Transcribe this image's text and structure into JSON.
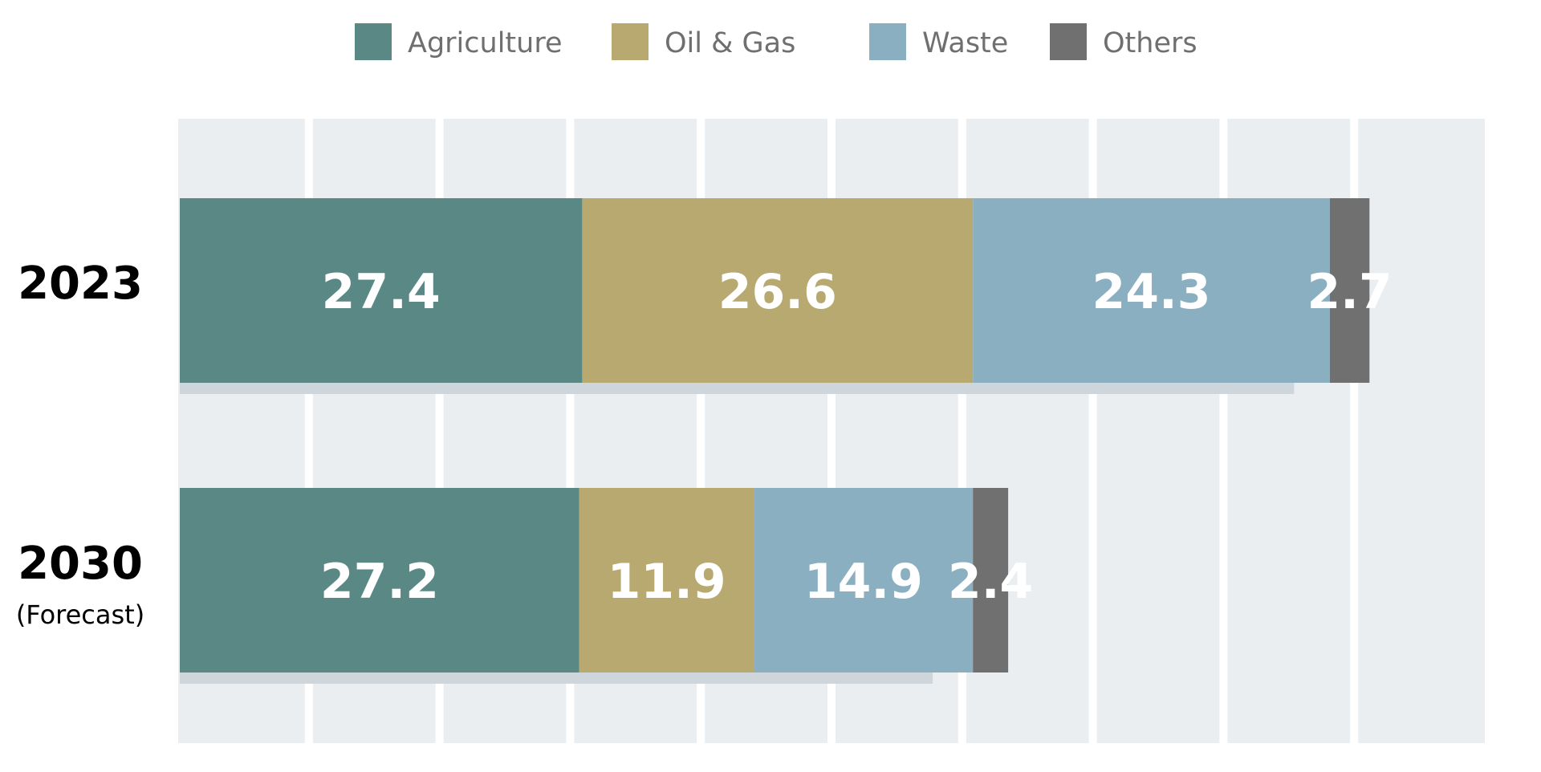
{
  "chart_data": {
    "type": "bar",
    "orientation": "horizontal",
    "stacked": true,
    "categories": [
      {
        "label": "2023",
        "sublabel": ""
      },
      {
        "label": "2030",
        "sublabel": "(Forecast)"
      }
    ],
    "series": [
      {
        "name": "Agriculture",
        "color": "#5a8985",
        "values": [
          27.4,
          27.2
        ]
      },
      {
        "name": "Oil &  Gas",
        "color": "#b8a970",
        "values": [
          26.6,
          11.9
        ]
      },
      {
        "name": "Waste",
        "color": "#8aafc1",
        "values": [
          24.3,
          14.9
        ]
      },
      {
        "name": "Others",
        "color": "#707070",
        "values": [
          2.7,
          2.4
        ]
      }
    ],
    "xlim": [
      0,
      100
    ],
    "grid": true,
    "gridlines_count": 10,
    "legend_position": "top",
    "colors": {
      "plot_background": "#eaeef1",
      "gridline": "#ffffff",
      "shadow": "#cfd6db",
      "bar_label": "#ffffff",
      "legend_text": "#6f6f6f"
    }
  }
}
